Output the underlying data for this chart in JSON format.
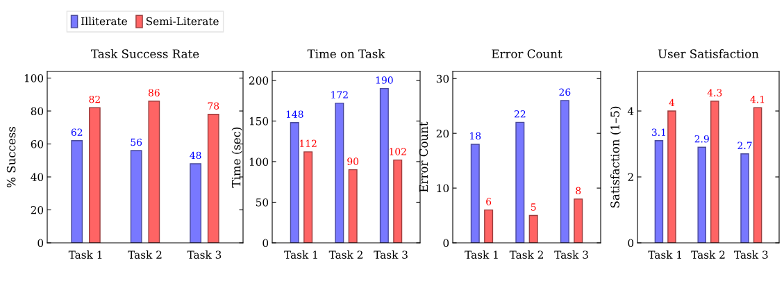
{
  "chart_data": [
    {
      "type": "bar",
      "title": "Task Success Rate",
      "ylabel": "% Success",
      "categories": [
        "Task 1",
        "Task 2",
        "Task 3"
      ],
      "ylim": [
        0,
        104
      ],
      "yticks": [
        0,
        20,
        40,
        60,
        80,
        100
      ],
      "data_labels": true,
      "legend": "top",
      "series": [
        {
          "name": "Illiterate",
          "color": "#7878ff",
          "values": [
            62,
            56,
            48
          ]
        },
        {
          "name": "Semi-Literate",
          "color": "#ff6464",
          "values": [
            82,
            86,
            78
          ]
        }
      ]
    },
    {
      "type": "bar",
      "title": "Time on Task",
      "ylabel": "Time (sec)",
      "categories": [
        "Task 1",
        "Task 2",
        "Task 3"
      ],
      "ylim": [
        0,
        211
      ],
      "yticks": [
        0,
        50,
        100,
        150,
        200
      ],
      "data_labels": true,
      "series": [
        {
          "color": "#7878ff",
          "values": [
            148,
            172,
            190
          ]
        },
        {
          "color": "#ff6464",
          "values": [
            112,
            90,
            102
          ]
        }
      ]
    },
    {
      "type": "bar",
      "title": "Error Count",
      "ylabel": "Error Count",
      "categories": [
        "Task 1",
        "Task 2",
        "Task 3"
      ],
      "ylim": [
        0,
        31.3
      ],
      "yticks": [
        0,
        10,
        20,
        30
      ],
      "data_labels": true,
      "series": [
        {
          "color": "#7878ff",
          "values": [
            18,
            22,
            26
          ]
        },
        {
          "color": "#ff6464",
          "values": [
            6,
            5,
            8
          ]
        }
      ]
    },
    {
      "type": "bar",
      "title": "User Satisfaction",
      "ylabel": "Satisfaction (1–5)",
      "categories": [
        "Task 1",
        "Task 2",
        "Task 3"
      ],
      "ylim": [
        0,
        5.2
      ],
      "yticks": [
        0,
        2,
        4
      ],
      "data_labels": true,
      "series": [
        {
          "color": "#7878ff",
          "values": [
            3.1,
            2.9,
            2.7
          ]
        },
        {
          "color": "#ff6464",
          "values": [
            4,
            4.3,
            4.1
          ]
        }
      ]
    }
  ]
}
